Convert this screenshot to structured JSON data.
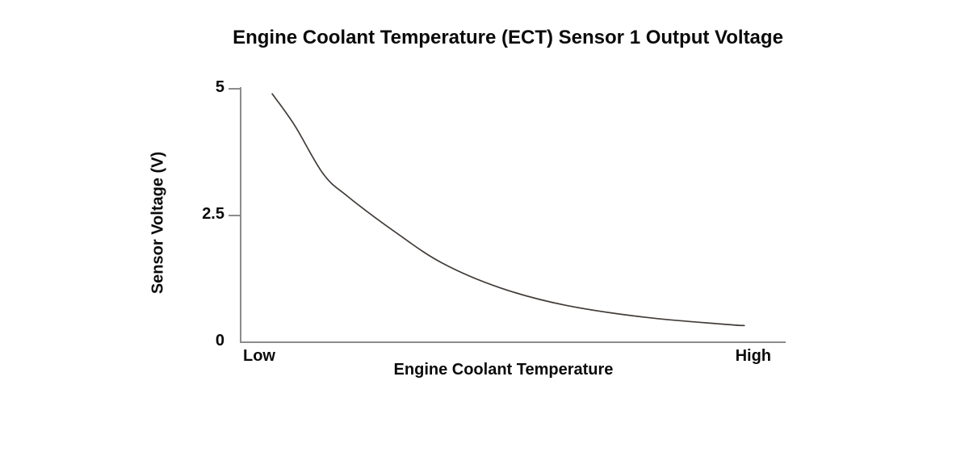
{
  "page": {
    "background": "#ffffff"
  },
  "chart_data": {
    "type": "line",
    "title": "Engine Coolant Temperature (ECT) Sensor 1 Output Voltage",
    "xlabel": "Engine Coolant Temperature",
    "ylabel": "Sensor Voltage (V)",
    "grid": false,
    "legend": false,
    "x_axis": {
      "type": "qualitative",
      "tick_labels": [
        "Low",
        "High"
      ]
    },
    "y_axis": {
      "lim": [
        0,
        5
      ],
      "ticks": [
        5,
        2.5,
        0
      ],
      "tick_marks": [
        5,
        2.5
      ]
    },
    "series": [
      {
        "name": "ECT Sensor 1 output voltage vs coolant temperature",
        "points_x_frac_voltage": [
          [
            0.058,
            4.9
          ],
          [
            0.099,
            4.28
          ],
          [
            0.151,
            3.33
          ],
          [
            0.196,
            2.88
          ],
          [
            0.284,
            2.17
          ],
          [
            0.37,
            1.56
          ],
          [
            0.477,
            1.07
          ],
          [
            0.596,
            0.73
          ],
          [
            0.744,
            0.49
          ],
          [
            0.892,
            0.35
          ],
          [
            0.924,
            0.33
          ]
        ]
      }
    ],
    "colors": {
      "curve": "#413c39",
      "axis": "#8c8c8c",
      "text": "#0a0a0a"
    }
  }
}
